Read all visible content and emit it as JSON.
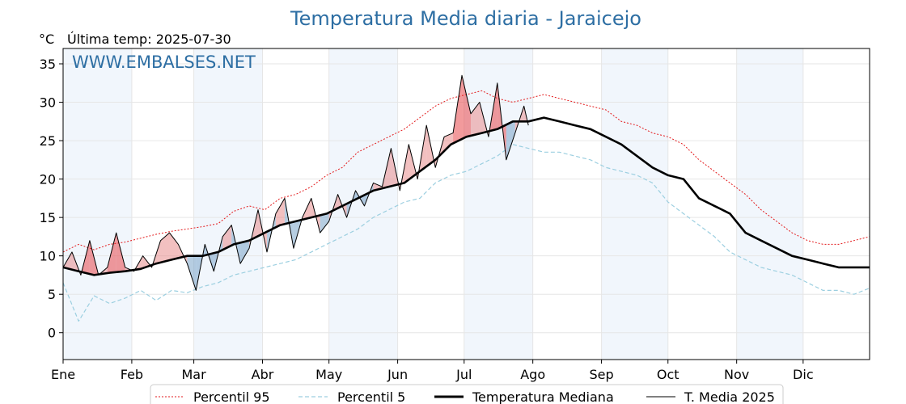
{
  "title": "Temperatura Media diaria - Jaraicejo",
  "unit_label": "°C",
  "last_temp_label": "Última temp: 2025-07-30",
  "watermark": "WWW.EMBALSES.NET",
  "chart_data": {
    "type": "line",
    "x_unit": "day of year (1-365)",
    "xlim": [
      1,
      365
    ],
    "ylim": [
      -3.5,
      37
    ],
    "yticks": [
      0,
      5,
      10,
      15,
      20,
      25,
      30,
      35
    ],
    "months": [
      "Ene",
      "Feb",
      "Mar",
      "Abr",
      "May",
      "Jun",
      "Jul",
      "Ago",
      "Sep",
      "Oct",
      "Nov",
      "Dic"
    ],
    "month_start_days": [
      1,
      32,
      60,
      91,
      121,
      152,
      182,
      213,
      244,
      274,
      305,
      335
    ],
    "grid": true,
    "legend_position": "bottom-center",
    "series": [
      {
        "name": "Percentil 95",
        "style": "dotted",
        "color": "#e31a1c",
        "x": [
          1,
          8,
          15,
          22,
          29,
          36,
          43,
          50,
          57,
          64,
          71,
          78,
          85,
          92,
          99,
          106,
          113,
          120,
          127,
          134,
          141,
          148,
          155,
          162,
          169,
          176,
          183,
          190,
          197,
          204,
          211,
          218,
          225,
          232,
          239,
          246,
          253,
          260,
          267,
          274,
          281,
          288,
          295,
          302,
          309,
          316,
          323,
          330,
          337,
          344,
          351,
          358,
          365
        ],
        "values": [
          10.5,
          11.5,
          10.8,
          11.5,
          11.8,
          12.3,
          12.8,
          13.2,
          13.5,
          13.8,
          14.2,
          15.8,
          16.5,
          16.0,
          17.5,
          18.0,
          19.0,
          20.5,
          21.5,
          23.5,
          24.5,
          25.5,
          26.5,
          28.0,
          29.5,
          30.5,
          31.0,
          31.5,
          30.5,
          30.0,
          30.5,
          31.0,
          30.5,
          30.0,
          29.5,
          29.0,
          27.5,
          27.0,
          26.0,
          25.5,
          24.5,
          22.5,
          21.0,
          19.5,
          18.0,
          16.0,
          14.5,
          13.0,
          12.0,
          11.5,
          11.5,
          12.0,
          12.5
        ]
      },
      {
        "name": "Percentil 5",
        "style": "dashed",
        "color": "#9ccfe0",
        "x": [
          1,
          8,
          15,
          22,
          29,
          36,
          43,
          50,
          57,
          64,
          71,
          78,
          85,
          92,
          99,
          106,
          113,
          120,
          127,
          134,
          141,
          148,
          155,
          162,
          169,
          176,
          183,
          190,
          197,
          204,
          211,
          218,
          225,
          232,
          239,
          246,
          253,
          260,
          267,
          274,
          281,
          288,
          295,
          302,
          309,
          316,
          323,
          330,
          337,
          344,
          351,
          358,
          365
        ],
        "values": [
          6.5,
          1.5,
          4.8,
          3.8,
          4.5,
          5.5,
          4.2,
          5.5,
          5.2,
          6.0,
          6.5,
          7.5,
          8.0,
          8.5,
          9.0,
          9.5,
          10.5,
          11.5,
          12.5,
          13.5,
          15.0,
          16.0,
          17.0,
          17.5,
          19.5,
          20.5,
          21.0,
          22.0,
          23.0,
          24.5,
          24.0,
          23.5,
          23.5,
          23.0,
          22.5,
          21.5,
          21.0,
          20.5,
          19.5,
          17.0,
          15.5,
          14.0,
          12.5,
          10.5,
          9.5,
          8.5,
          8.0,
          7.5,
          6.5,
          5.5,
          5.5,
          5.0,
          5.8
        ]
      },
      {
        "name": "Temperatura Mediana",
        "style": "solid-bold",
        "color": "#000000",
        "x": [
          1,
          8,
          15,
          22,
          29,
          36,
          43,
          50,
          57,
          64,
          71,
          78,
          85,
          92,
          99,
          106,
          113,
          120,
          127,
          134,
          141,
          148,
          155,
          162,
          169,
          176,
          183,
          190,
          197,
          204,
          211,
          218,
          225,
          232,
          239,
          246,
          253,
          260,
          267,
          274,
          281,
          288,
          295,
          302,
          309,
          316,
          323,
          330,
          337,
          344,
          351,
          358,
          365
        ],
        "values": [
          8.5,
          8.0,
          7.5,
          7.8,
          8.0,
          8.3,
          9.0,
          9.5,
          10.0,
          10.0,
          10.5,
          11.5,
          12.0,
          13.0,
          14.0,
          14.5,
          15.0,
          15.5,
          16.5,
          17.5,
          18.5,
          19.0,
          19.5,
          21.0,
          22.5,
          24.5,
          25.5,
          26.0,
          26.5,
          27.5,
          27.5,
          28.0,
          27.5,
          27.0,
          26.5,
          25.5,
          24.5,
          23.0,
          21.5,
          20.5,
          20.0,
          17.5,
          16.5,
          15.5,
          13.0,
          12.0,
          11.0,
          10.0,
          9.5,
          9.0,
          8.5,
          8.5,
          8.5
        ]
      },
      {
        "name": "T. Media 2025",
        "style": "solid-thin",
        "color": "#000000",
        "x": [
          1,
          5,
          9,
          13,
          17,
          21,
          25,
          29,
          33,
          37,
          41,
          45,
          49,
          53,
          57,
          61,
          65,
          69,
          73,
          77,
          81,
          85,
          89,
          93,
          97,
          101,
          105,
          109,
          113,
          117,
          121,
          125,
          129,
          133,
          137,
          141,
          145,
          149,
          153,
          157,
          161,
          165,
          169,
          173,
          177,
          181,
          185,
          189,
          193,
          197,
          201,
          205,
          209,
          211
        ],
        "values": [
          8.5,
          10.5,
          7.5,
          12.0,
          7.5,
          8.5,
          13.0,
          8.5,
          8.0,
          10.0,
          8.5,
          12.0,
          13.0,
          11.5,
          9.0,
          5.5,
          11.5,
          8.0,
          12.5,
          14.0,
          9.0,
          11.0,
          16.0,
          10.5,
          15.5,
          17.5,
          11.0,
          15.0,
          17.5,
          13.0,
          14.5,
          18.0,
          15.0,
          18.5,
          16.5,
          19.5,
          19.0,
          24.0,
          18.5,
          24.5,
          20.0,
          27.0,
          21.5,
          25.5,
          26.0,
          33.5,
          28.5,
          30.0,
          25.5,
          32.5,
          22.5,
          26.0,
          29.5,
          27.0
        ]
      }
    ]
  },
  "legend": {
    "p95": "Percentil 95",
    "p5": "Percentil 5",
    "median": "Temperatura Mediana",
    "year": "T. Media 2025"
  },
  "colors": {
    "title": "#2d6ea3",
    "above_fill": "#e88c8c",
    "above_fill_strong": "#e8474b",
    "below_fill": "#7aa4c8",
    "month_shade": "#f1f6fc",
    "grid": "#e6e6e6"
  }
}
